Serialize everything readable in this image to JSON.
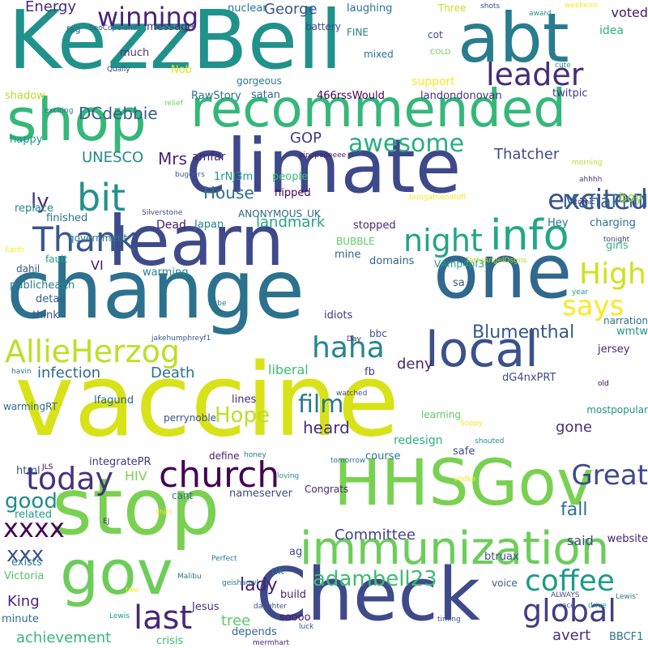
{
  "words": [
    {
      "text": "vaccine",
      "color": "#d8e219"
    },
    {
      "text": "change",
      "color": "#2c728e"
    },
    {
      "text": "climate",
      "color": "#3e4989"
    },
    {
      "text": "KezzBell",
      "color": "#21918c"
    },
    {
      "text": "stop",
      "color": "#7ad151"
    },
    {
      "text": "HHSGov",
      "color": "#7ad151"
    },
    {
      "text": "Check",
      "color": "#3e4a89"
    },
    {
      "text": "one",
      "color": "#31688e"
    },
    {
      "text": "learn",
      "color": "#3e4a89"
    },
    {
      "text": "shop",
      "color": "#35b779"
    },
    {
      "text": "abt",
      "color": "#287c8e"
    },
    {
      "text": "gov",
      "color": "#6ccd5a"
    },
    {
      "text": "recommended",
      "color": "#35b779"
    },
    {
      "text": "immunization",
      "color": "#6ccd5a"
    },
    {
      "text": "local",
      "color": "#3b518b"
    },
    {
      "text": "info",
      "color": "#22a884"
    },
    {
      "text": "night",
      "color": "#21a685"
    },
    {
      "text": "bit",
      "color": "#21918c"
    },
    {
      "text": "church",
      "color": "#440154"
    },
    {
      "text": "AllieHerzog",
      "color": "#bddf26"
    },
    {
      "text": "winning",
      "color": "#482475"
    },
    {
      "text": "leader",
      "color": "#472c7a"
    },
    {
      "text": "awesome",
      "color": "#29af7f"
    },
    {
      "text": "excited",
      "color": "#3b528b"
    },
    {
      "text": "Thank",
      "color": "#39568c"
    },
    {
      "text": "global",
      "color": "#433e85"
    },
    {
      "text": "coffee",
      "color": "#1f9a8a"
    },
    {
      "text": "today",
      "color": "#46337e"
    },
    {
      "text": "High",
      "color": "#d0e11c"
    },
    {
      "text": "says",
      "color": "#fde725"
    },
    {
      "text": "haha",
      "color": "#25858e"
    },
    {
      "text": "last",
      "color": "#482878"
    },
    {
      "text": "adambell23",
      "color": "#3dbc74"
    },
    {
      "text": "film",
      "color": "#2a788e"
    },
    {
      "text": "Hope",
      "color": "#bddf26"
    },
    {
      "text": "xxxx",
      "color": "#440154"
    },
    {
      "text": "Great",
      "color": "#3e4a89"
    },
    {
      "text": "MafiaPhill",
      "color": "#32648e"
    },
    {
      "text": "Blumenthal",
      "color": "#38588c"
    },
    {
      "text": "lady",
      "color": "#482173"
    },
    {
      "text": "good",
      "color": "#228c8d"
    },
    {
      "text": "xxx",
      "color": "#3b528b"
    },
    {
      "text": "fall",
      "color": "#2d708e"
    },
    {
      "text": "ly",
      "color": "#46327e"
    },
    {
      "text": "DCdebbie",
      "color": "#355f8d"
    },
    {
      "text": "House",
      "color": "#2d708e"
    },
    {
      "text": "Mrs",
      "color": "#482475"
    },
    {
      "text": "UNESCO",
      "color": "#238a8d"
    },
    {
      "text": "heard",
      "color": "#472f7d"
    },
    {
      "text": "Death",
      "color": "#2c718e"
    },
    {
      "text": "Thatcher",
      "color": "#3e4989"
    },
    {
      "text": "GOP",
      "color": "#443a83"
    },
    {
      "text": "tree",
      "color": "#5ec962"
    },
    {
      "text": "infection",
      "color": "#30698e"
    },
    {
      "text": "landmark",
      "color": "#22a884"
    },
    {
      "text": "Committee",
      "color": "#414487"
    },
    {
      "text": "King",
      "color": "#482677"
    },
    {
      "text": "deny",
      "color": "#482475"
    },
    {
      "text": "Energy",
      "color": "#472d7b"
    },
    {
      "text": "George",
      "color": "#39568c"
    },
    {
      "text": "avert",
      "color": "#46337e"
    },
    {
      "text": "achievement",
      "color": "#35b779"
    },
    {
      "text": "said",
      "color": "#3f4788"
    },
    {
      "text": "gone",
      "color": "#46307e"
    },
    {
      "text": "liberal",
      "color": "#3dbc74"
    },
    {
      "text": "HIV",
      "color": "#7ad151"
    },
    {
      "text": "VI",
      "color": "#481769"
    },
    {
      "text": "amfar",
      "color": "#482475"
    },
    {
      "text": "boy",
      "color": "#9fda3a"
    },
    {
      "text": "voted",
      "color": "#481a6c"
    },
    {
      "text": "idea",
      "color": "#2fb47c"
    },
    {
      "text": "support",
      "color": "#fde725"
    },
    {
      "text": "redesign",
      "color": "#2ab07f"
    },
    {
      "text": "Dead",
      "color": "#481b6d"
    },
    {
      "text": "nuclear",
      "color": "#2c728e"
    },
    {
      "text": "laughing",
      "color": "#2c738e"
    },
    {
      "text": "message",
      "color": "#472f7d"
    },
    {
      "text": "much",
      "color": "#453882"
    },
    {
      "text": "Nob",
      "color": "#e2e418"
    },
    {
      "text": "satan",
      "color": "#2f6b8e"
    },
    {
      "text": "466rssWould",
      "color": "#440154"
    },
    {
      "text": "landondonovan",
      "color": "#46337e"
    },
    {
      "text": "twitpic",
      "color": "#453781"
    },
    {
      "text": "RawStory",
      "color": "#2c718e"
    },
    {
      "text": "shadow",
      "color": "#b5de2b"
    },
    {
      "text": "happy",
      "color": "#1f968b"
    },
    {
      "text": "government",
      "color": "#2a788e"
    },
    {
      "text": "replace",
      "color": "#26828e"
    },
    {
      "text": "finished",
      "color": "#2a768e"
    },
    {
      "text": "publichealth",
      "color": "#287d8e"
    },
    {
      "text": "1rNJ3m",
      "color": "#1f978b"
    },
    {
      "text": "people",
      "color": "#3dbc74"
    },
    {
      "text": "nipped",
      "color": "#450559"
    },
    {
      "text": "Japan",
      "color": "#25848e"
    },
    {
      "text": "stopped",
      "color": "#482677"
    },
    {
      "text": "Hey",
      "color": "#2c718e"
    },
    {
      "text": "charging",
      "color": "#2e6e8e"
    },
    {
      "text": "girls",
      "color": "#34b679"
    },
    {
      "text": "BUBBLE",
      "color": "#5ec962"
    },
    {
      "text": "mine",
      "color": "#32658e"
    },
    {
      "text": "domains",
      "color": "#32658e"
    },
    {
      "text": "ANONYMOUS_UK",
      "color": "#31688e"
    },
    {
      "text": "dahil",
      "color": "#38588c"
    },
    {
      "text": "fault",
      "color": "#1f9f88"
    },
    {
      "text": "detail",
      "color": "#355e8d"
    },
    {
      "text": "think",
      "color": "#3b528b"
    },
    {
      "text": "idiots",
      "color": "#453781"
    },
    {
      "text": "sa",
      "color": "#3b528b"
    },
    {
      "text": "bbc",
      "color": "#3b528b"
    },
    {
      "text": "VAmp4pf3i",
      "color": "#1f9e89"
    },
    {
      "text": "jersey",
      "color": "#482878"
    },
    {
      "text": "wmtw",
      "color": "#21918c"
    },
    {
      "text": "fb",
      "color": "#453882"
    },
    {
      "text": "lfagund",
      "color": "#31678e"
    },
    {
      "text": "lines",
      "color": "#482878"
    },
    {
      "text": "perrynoble",
      "color": "#3b518b"
    },
    {
      "text": "dG4nxPRT",
      "color": "#3e4a89"
    },
    {
      "text": "mostpopular",
      "color": "#20928c"
    },
    {
      "text": "narration",
      "color": "#2c728e"
    },
    {
      "text": "html",
      "color": "#39568c"
    },
    {
      "text": "integratePR",
      "color": "#453781"
    },
    {
      "text": "define",
      "color": "#481d6f"
    },
    {
      "text": "course",
      "color": "#2a778e"
    },
    {
      "text": "safe",
      "color": "#3e4989"
    },
    {
      "text": "learning",
      "color": "#5ec962"
    },
    {
      "text": "warmingRT",
      "color": "#2e6d8e"
    },
    {
      "text": "cant",
      "color": "#2e6d8e"
    },
    {
      "text": "nameserver",
      "color": "#3e4989"
    },
    {
      "text": "related",
      "color": "#1f998a"
    },
    {
      "text": "Congrats",
      "color": "#482878"
    },
    {
      "text": "website",
      "color": "#481f70"
    },
    {
      "text": "btruax",
      "color": "#3b518b"
    },
    {
      "text": "exists",
      "color": "#2a788e"
    },
    {
      "text": "Victoria",
      "color": "#54c568"
    },
    {
      "text": "ag",
      "color": "#3e4989"
    },
    {
      "text": "uk",
      "color": "#2d718e"
    },
    {
      "text": "build",
      "color": "#482475"
    },
    {
      "text": "Jesus",
      "color": "#46307e"
    },
    {
      "text": "soooo",
      "color": "#48196b"
    },
    {
      "text": "depends",
      "color": "#31688e"
    },
    {
      "text": "crisis",
      "color": "#38b977"
    },
    {
      "text": "minute",
      "color": "#2e6d8e"
    },
    {
      "text": "BBCF1",
      "color": "#2a768e"
    },
    {
      "text": "voice",
      "color": "#355f8d"
    },
    {
      "text": "mixed",
      "color": "#2c728e"
    },
    {
      "text": "gorgeous",
      "color": "#2a788e"
    },
    {
      "text": "battery",
      "color": "#3e4989"
    },
    {
      "text": "FINE",
      "color": "#27808e"
    },
    {
      "text": "cot",
      "color": "#3e4989"
    },
    {
      "text": "Three",
      "color": "#c8e020"
    },
    {
      "text": "fag",
      "color": "#2c718e"
    },
    {
      "text": "SeoCopeland",
      "color": "#39568c"
    },
    {
      "text": "COLD",
      "color": "#6ccd5a"
    },
    {
      "text": "Qually",
      "color": "#3e4989"
    },
    {
      "text": "cute",
      "color": "#1f958b"
    },
    {
      "text": "shots",
      "color": "#3b528b"
    },
    {
      "text": "award",
      "color": "#20928c"
    },
    {
      "text": "weekend",
      "color": "#fde725"
    },
    {
      "text": "exciting",
      "color": "#2c728e"
    },
    {
      "text": "relief",
      "color": "#6ccd5a"
    },
    {
      "text": "yipppeeeeee",
      "color": "#48186a"
    },
    {
      "text": "Silverstone",
      "color": "#3f4788"
    },
    {
      "text": "buggers",
      "color": "#38598c"
    },
    {
      "text": "comic",
      "color": "#482878"
    },
    {
      "text": "morning",
      "color": "#b5de2b"
    },
    {
      "text": "ahhhh",
      "color": "#46337e"
    },
    {
      "text": "bringafriendtofl",
      "color": "#fde725"
    },
    {
      "text": "tonight",
      "color": "#433e85"
    },
    {
      "text": "TattyAngelDsgns",
      "color": "#b5de2b"
    },
    {
      "text": "babe",
      "color": "#2c728e"
    },
    {
      "text": "year",
      "color": "#1f9e89"
    },
    {
      "text": "jakehumphreyf1",
      "color": "#38598c"
    },
    {
      "text": "havin",
      "color": "#2c728e"
    },
    {
      "text": "Day",
      "color": "#482878"
    },
    {
      "text": "old",
      "color": "#440154"
    },
    {
      "text": "watched",
      "color": "#3b528b"
    },
    {
      "text": "Soppy",
      "color": "#fde725"
    },
    {
      "text": "shouted",
      "color": "#21908d"
    },
    {
      "text": "honey",
      "color": "#2a778e"
    },
    {
      "text": "JLS",
      "color": "#440154"
    },
    {
      "text": "loving",
      "color": "#20928c"
    },
    {
      "text": "tomorrow",
      "color": "#2c728e"
    },
    {
      "text": "vodka",
      "color": "#fde725"
    },
    {
      "text": "EJ",
      "color": "#482475"
    },
    {
      "text": "shirt",
      "color": "#fde725"
    },
    {
      "text": "Perfect",
      "color": "#2a778e"
    },
    {
      "text": "Malibu",
      "color": "#2a778e"
    },
    {
      "text": "geishaowl",
      "color": "#2c718e"
    },
    {
      "text": "ALWAYS",
      "color": "#3b528b"
    },
    {
      "text": "race",
      "color": "#3b528b"
    },
    {
      "text": "drive",
      "color": "#20928c"
    },
    {
      "text": "Lewis'",
      "color": "#2c728e"
    },
    {
      "text": "two",
      "color": "#fde725"
    },
    {
      "text": "daughter",
      "color": "#3b528b"
    },
    {
      "text": "Lewis",
      "color": "#20928c"
    },
    {
      "text": "luck",
      "color": "#3b528b"
    },
    {
      "text": "timing",
      "color": "#3b528b"
    },
    {
      "text": "mermhart",
      "color": "#481d6f"
    },
    {
      "text": "warming",
      "color": "#25858e"
    },
    {
      "text": "Earth",
      "color": "#fde725"
    }
  ]
}
